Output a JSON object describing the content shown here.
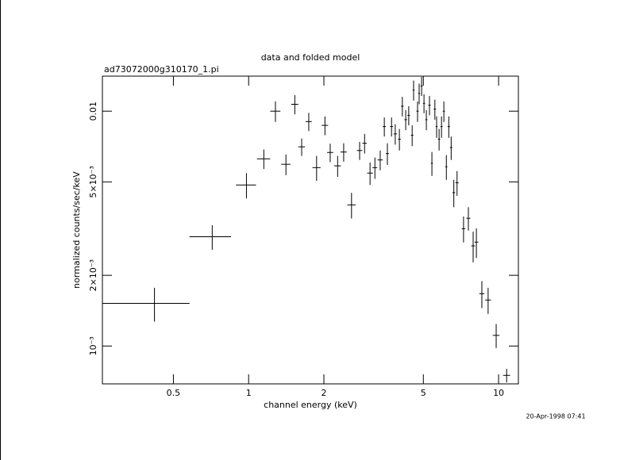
{
  "chart_data": {
    "type": "scatter",
    "title": "data and folded model",
    "subtitle": "ad73072000g310170_1.pi",
    "x_label": "channel energy (keV)",
    "y_label": "normalized counts/sec/keV",
    "annotation": "20-Apr-1998 07:41",
    "xscale": "log",
    "yscale": "log",
    "color": "#000000",
    "xlim": [
      0.26,
      12
    ],
    "ylim": [
      0.00069,
      0.0141
    ],
    "xticks": [
      0.5,
      1,
      2,
      5,
      10
    ],
    "yticks": [
      {
        "value": 0.001,
        "label": "10⁻³"
      },
      {
        "value": 0.002,
        "label": "2×10⁻³"
      },
      {
        "value": 0.005,
        "label": "5×10⁻³"
      },
      0.01
    ],
    "x": [
      0.42,
      0.715,
      0.98,
      1.15,
      1.28,
      1.41,
      1.53,
      1.63,
      1.74,
      1.87,
      2.02,
      2.12,
      2.27,
      2.4,
      2.58,
      2.78,
      2.91,
      3.06,
      3.2,
      3.36,
      3.49,
      3.59,
      3.73,
      3.86,
      4.01,
      4.12,
      4.25,
      4.37,
      4.51,
      4.57,
      4.74,
      4.81,
      4.92,
      5.03,
      5.14,
      5.29,
      5.41,
      5.56,
      5.65,
      5.78,
      5.91,
      6.04,
      6.18,
      6.32,
      6.46,
      6.62,
      6.82,
      7.24,
      7.57,
      7.91,
      8.15,
      8.57,
      9.08,
      9.78,
      10.77
    ],
    "xerr": [
      0.16,
      0.135,
      0.09,
      0.07,
      0.06,
      0.06,
      0.05,
      0.05,
      0.05,
      0.07,
      0.06,
      0.06,
      0.07,
      0.07,
      0.1,
      0.07,
      0.06,
      0.08,
      0.07,
      0.08,
      0.05,
      0.05,
      0.05,
      0.06,
      0.05,
      0.05,
      0.05,
      0.05,
      0.05,
      0.04,
      0.05,
      0.04,
      0.05,
      0.05,
      0.05,
      0.06,
      0.05,
      0.06,
      0.05,
      0.06,
      0.06,
      0.06,
      0.06,
      0.07,
      0.07,
      0.08,
      0.1,
      0.12,
      0.14,
      0.14,
      0.14,
      0.2,
      0.24,
      0.3,
      0.35
    ],
    "values": [
      0.00152,
      0.00292,
      0.00485,
      0.00627,
      0.01,
      0.00594,
      0.0107,
      0.00705,
      0.00903,
      0.00575,
      0.0087,
      0.00667,
      0.00585,
      0.0067,
      0.00399,
      0.0068,
      0.0073,
      0.00545,
      0.00575,
      0.0062,
      0.0086,
      0.0066,
      0.0086,
      0.008,
      0.0076,
      0.0105,
      0.0092,
      0.0096,
      0.0079,
      0.0123,
      0.01,
      0.0119,
      0.0128,
      0.0108,
      0.0092,
      0.0106,
      0.006,
      0.0102,
      0.0086,
      0.0076,
      0.0086,
      0.01,
      0.0058,
      0.0086,
      0.007,
      0.0045,
      0.00496,
      0.00316,
      0.0035,
      0.00267,
      0.00277,
      0.00167,
      0.00157,
      0.00111,
      0.00075
    ],
    "yerr": [
      0.00025,
      0.00035,
      0.0006,
      0.0006,
      0.001,
      0.0006,
      0.001,
      0.0006,
      0.0008,
      0.0007,
      0.0008,
      0.0006,
      0.0006,
      0.0006,
      0.0005,
      0.0006,
      0.0007,
      0.0006,
      0.0006,
      0.0006,
      0.0008,
      0.0007,
      0.0008,
      0.0008,
      0.0008,
      0.001,
      0.0009,
      0.0009,
      0.0008,
      0.0012,
      0.001,
      0.0012,
      0.0012,
      0.001,
      0.0009,
      0.001,
      0.0007,
      0.001,
      0.0009,
      0.0008,
      0.0009,
      0.001,
      0.0007,
      0.0009,
      0.0008,
      0.0006,
      0.0006,
      0.0004,
      0.0004,
      0.0004,
      0.0004,
      0.00022,
      0.0002,
      0.00013,
      5e-05
    ]
  }
}
